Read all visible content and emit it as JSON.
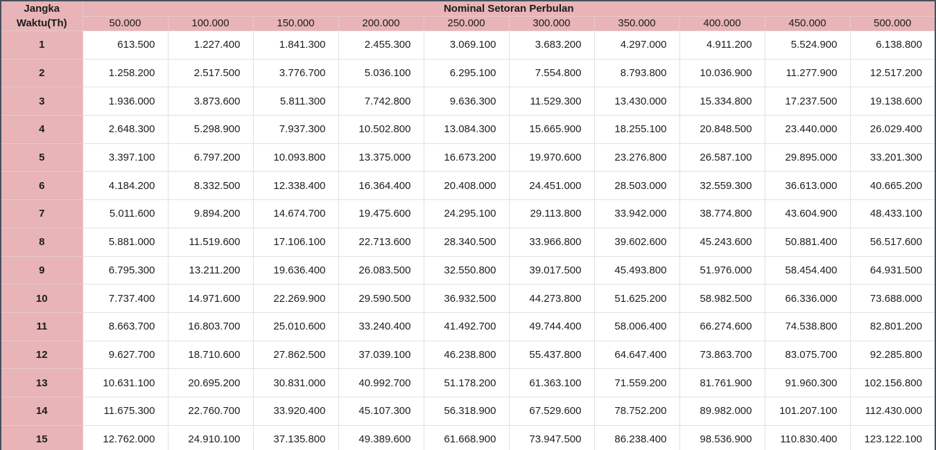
{
  "colors": {
    "header_bg": "#e8b4b7",
    "outer_border": "#44505a",
    "inner_border_light": "#e0e0e0",
    "text": "#1c1c1c"
  },
  "chart_data": {
    "type": "table",
    "row_header_title": "Jangka Waktu(Th)",
    "group_header": "Nominal Setoran Perbulan",
    "columns": [
      "50.000",
      "100.000",
      "150.000",
      "200.000",
      "250.000",
      "300.000",
      "350.000",
      "400.000",
      "450.000",
      "500.000"
    ],
    "row_labels": [
      "1",
      "2",
      "3",
      "4",
      "5",
      "6",
      "7",
      "8",
      "9",
      "10",
      "11",
      "12",
      "13",
      "14",
      "15"
    ],
    "rows": [
      [
        "613.500",
        "1.227.400",
        "1.841.300",
        "2.455.300",
        "3.069.100",
        "3.683.200",
        "4.297.000",
        "4.911.200",
        "5.524.900",
        "6.138.800"
      ],
      [
        "1.258.200",
        "2.517.500",
        "3.776.700",
        "5.036.100",
        "6.295.100",
        "7.554.800",
        "8.793.800",
        "10.036.900",
        "11.277.900",
        "12.517.200"
      ],
      [
        "1.936.000",
        "3.873.600",
        "5.811.300",
        "7.742.800",
        "9.636.300",
        "11.529.300",
        "13.430.000",
        "15.334.800",
        "17.237.500",
        "19.138.600"
      ],
      [
        "2.648.300",
        "5.298.900",
        "7.937.300",
        "10.502.800",
        "13.084.300",
        "15.665.900",
        "18.255.100",
        "20.848.500",
        "23.440.000",
        "26.029.400"
      ],
      [
        "3.397.100",
        "6.797.200",
        "10.093.800",
        "13.375.000",
        "16.673.200",
        "19.970.600",
        "23.276.800",
        "26.587.100",
        "29.895.000",
        "33.201.300"
      ],
      [
        "4.184.200",
        "8.332.500",
        "12.338.400",
        "16.364.400",
        "20.408.000",
        "24.451.000",
        "28.503.000",
        "32.559.300",
        "36.613.000",
        "40.665.200"
      ],
      [
        "5.011.600",
        "9.894.200",
        "14.674.700",
        "19.475.600",
        "24.295.100",
        "29.113.800",
        "33.942.000",
        "38.774.800",
        "43.604.900",
        "48.433.100"
      ],
      [
        "5.881.000",
        "11.519.600",
        "17.106.100",
        "22.713.600",
        "28.340.500",
        "33.966.800",
        "39.602.600",
        "45.243.600",
        "50.881.400",
        "56.517.600"
      ],
      [
        "6.795.300",
        "13.211.200",
        "19.636.400",
        "26.083.500",
        "32.550.800",
        "39.017.500",
        "45.493.800",
        "51.976.000",
        "58.454.400",
        "64.931.500"
      ],
      [
        "7.737.400",
        "14.971.600",
        "22.269.900",
        "29.590.500",
        "36.932.500",
        "44.273.800",
        "51.625.200",
        "58.982.500",
        "66.336.000",
        "73.688.000"
      ],
      [
        "8.663.700",
        "16.803.700",
        "25.010.600",
        "33.240.400",
        "41.492.700",
        "49.744.400",
        "58.006.400",
        "66.274.600",
        "74.538.800",
        "82.801.200"
      ],
      [
        "9.627.700",
        "18.710.600",
        "27.862.500",
        "37.039.100",
        "46.238.800",
        "55.437.800",
        "64.647.400",
        "73.863.700",
        "83.075.700",
        "92.285.800"
      ],
      [
        "10.631.100",
        "20.695.200",
        "30.831.000",
        "40.992.700",
        "51.178.200",
        "61.363.100",
        "71.559.200",
        "81.761.900",
        "91.960.300",
        "102.156.800"
      ],
      [
        "11.675.300",
        "22.760.700",
        "33.920.400",
        "45.107.300",
        "56.318.900",
        "67.529.600",
        "78.752.200",
        "89.982.000",
        "101.207.100",
        "112.430.000"
      ],
      [
        "12.762.000",
        "24.910.100",
        "37.135.800",
        "49.389.600",
        "61.668.900",
        "73.947.500",
        "86.238.400",
        "98.536.900",
        "110.830.400",
        "123.122.100"
      ]
    ]
  }
}
